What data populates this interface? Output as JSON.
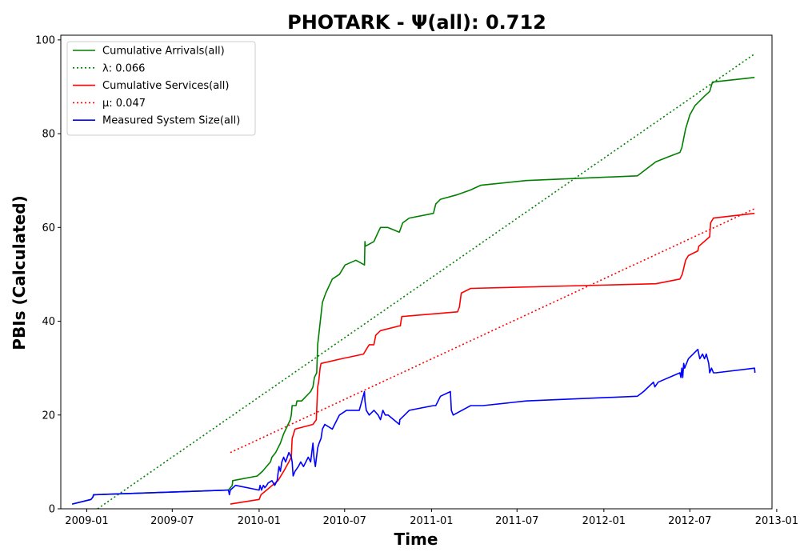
{
  "chart_data": {
    "type": "line",
    "title": "PHOTARK -  Ψ(all): 0.712",
    "xlabel": "Time",
    "ylabel": "PBIs (Calculated)",
    "xlim": [
      "2008-11-07",
      "2012-12-22"
    ],
    "ylim": [
      0,
      101
    ],
    "grid": false,
    "legend_position": "top-left",
    "x_ticks": [
      "2009-01",
      "2009-07",
      "2010-01",
      "2010-07",
      "2011-01",
      "2011-07",
      "2012-01",
      "2012-07",
      "2013-01"
    ],
    "y_ticks": [
      0,
      20,
      40,
      60,
      80,
      100
    ],
    "series": [
      {
        "name": "Cumulative Arrivals(all)",
        "style": "solid",
        "color": "#008000",
        "x": [
          "2008-12-01",
          "2009-01-10",
          "2009-01-14",
          "2009-01-15",
          "2009-10-28",
          "2009-11-05",
          "2009-11-06",
          "2009-12-28",
          "2010-01-08",
          "2010-01-25",
          "2010-01-28",
          "2010-02-05",
          "2010-02-15",
          "2010-02-22",
          "2010-03-08",
          "2010-03-10",
          "2010-03-12",
          "2010-03-20",
          "2010-03-22",
          "2010-04-01",
          "2010-04-20",
          "2010-04-25",
          "2010-04-28",
          "2010-05-03",
          "2010-05-05",
          "2010-05-15",
          "2010-05-22",
          "2010-06-05",
          "2010-06-20",
          "2010-07-02",
          "2010-07-25",
          "2010-08-12",
          "2010-08-13",
          "2010-08-14",
          "2010-09-01",
          "2010-09-10",
          "2010-09-15",
          "2010-09-30",
          "2010-10-25",
          "2010-11-01",
          "2010-11-15",
          "2011-01-05",
          "2011-01-10",
          "2011-01-20",
          "2011-02-25",
          "2011-03-25",
          "2011-04-15",
          "2011-07-20",
          "2012-03-12",
          "2012-03-25",
          "2012-04-20",
          "2012-05-15",
          "2012-06-10",
          "2012-06-14",
          "2012-06-18",
          "2012-06-22",
          "2012-07-01",
          "2012-07-12",
          "2012-08-01",
          "2012-08-12",
          "2012-08-18",
          "2012-11-15"
        ],
        "values": [
          1,
          2,
          2.5,
          3,
          4,
          5,
          6,
          7,
          8,
          10,
          11,
          12,
          14,
          16,
          19,
          20,
          22,
          22,
          23,
          23,
          25,
          26,
          28,
          29,
          35,
          44,
          46,
          49,
          50,
          52,
          53,
          52,
          57,
          56,
          57,
          59,
          60,
          60,
          59,
          61,
          62,
          63,
          65,
          66,
          67,
          68,
          69,
          70,
          71,
          72,
          74,
          75,
          76,
          77,
          79,
          81,
          84,
          86,
          88,
          89,
          91,
          92
        ]
      },
      {
        "name": "λ: 0.066",
        "style": "dotted",
        "color": "#008000",
        "x": [
          "2009-01-24",
          "2012-11-15"
        ],
        "values": [
          0,
          97
        ]
      },
      {
        "name": "Cumulative Services(all)",
        "style": "solid",
        "color": "#ff0000",
        "x": [
          "2009-11-01",
          "2010-01-01",
          "2010-01-05",
          "2010-02-10",
          "2010-02-22",
          "2010-03-05",
          "2010-03-10",
          "2010-03-12",
          "2010-03-18",
          "2010-04-25",
          "2010-05-02",
          "2010-05-05",
          "2010-05-07",
          "2010-05-10",
          "2010-05-12",
          "2010-06-25",
          "2010-08-10",
          "2010-08-16",
          "2010-08-22",
          "2010-09-01",
          "2010-09-05",
          "2010-09-15",
          "2010-10-25",
          "2010-10-27",
          "2010-10-30",
          "2011-02-25",
          "2011-03-01",
          "2011-03-05",
          "2011-03-25",
          "2012-04-20",
          "2012-06-10",
          "2012-06-15",
          "2012-06-22",
          "2012-06-28",
          "2012-07-18",
          "2012-07-20",
          "2012-08-12",
          "2012-08-14",
          "2012-08-20",
          "2012-11-15"
        ],
        "values": [
          1,
          2,
          3,
          6,
          8,
          10,
          11,
          15,
          17,
          18,
          19,
          26,
          27,
          30,
          31,
          32,
          33,
          34,
          35,
          35,
          37,
          38,
          39,
          39,
          41,
          42,
          43,
          46,
          47,
          48,
          49,
          50,
          53,
          54,
          55,
          56,
          58,
          61,
          62,
          63
        ]
      },
      {
        "name": "μ: 0.047",
        "style": "dotted",
        "color": "#ff0000",
        "x": [
          "2009-11-01",
          "2012-11-15"
        ],
        "values": [
          12,
          64
        ]
      },
      {
        "name": "Measured System Size(all)",
        "style": "solid",
        "color": "#0000ff",
        "x": [
          "2008-12-01",
          "2009-01-10",
          "2009-01-14",
          "2009-01-16",
          "2009-10-28",
          "2009-10-30",
          "2009-11-01",
          "2009-11-12",
          "2010-01-01",
          "2010-01-03",
          "2010-01-06",
          "2010-01-10",
          "2010-01-13",
          "2010-01-17",
          "2010-01-20",
          "2010-01-28",
          "2010-02-03",
          "2010-02-08",
          "2010-02-12",
          "2010-02-15",
          "2010-02-18",
          "2010-02-22",
          "2010-02-26",
          "2010-03-05",
          "2010-03-10",
          "2010-03-12",
          "2010-03-14",
          "2010-03-18",
          "2010-03-25",
          "2010-03-30",
          "2010-04-05",
          "2010-04-15",
          "2010-04-20",
          "2010-04-25",
          "2010-04-27",
          "2010-04-30",
          "2010-05-05",
          "2010-05-08",
          "2010-05-12",
          "2010-05-15",
          "2010-05-20",
          "2010-06-05",
          "2010-06-15",
          "2010-06-20",
          "2010-07-05",
          "2010-08-01",
          "2010-08-12",
          "2010-08-13",
          "2010-08-16",
          "2010-08-22",
          "2010-09-01",
          "2010-09-10",
          "2010-09-15",
          "2010-09-20",
          "2010-09-25",
          "2010-10-01",
          "2010-10-25",
          "2010-10-26",
          "2010-11-05",
          "2010-11-15",
          "2011-01-05",
          "2011-01-10",
          "2011-01-20",
          "2011-02-10",
          "2011-02-12",
          "2011-02-16",
          "2011-03-25",
          "2011-04-20",
          "2011-07-20",
          "2012-03-12",
          "2012-03-25",
          "2012-04-15",
          "2012-04-18",
          "2012-04-25",
          "2012-06-10",
          "2012-06-12",
          "2012-06-14",
          "2012-06-16",
          "2012-06-18",
          "2012-06-20",
          "2012-06-28",
          "2012-07-18",
          "2012-07-22",
          "2012-07-28",
          "2012-08-01",
          "2012-08-05",
          "2012-08-10",
          "2012-08-12",
          "2012-08-16",
          "2012-08-20",
          "2012-08-25",
          "2012-11-15",
          "2012-11-16"
        ],
        "values": [
          1,
          2,
          2.5,
          3,
          4,
          3,
          4,
          5,
          4,
          5,
          4,
          5,
          4.5,
          5,
          5.5,
          6,
          5,
          6,
          9,
          8,
          10,
          11,
          10,
          12,
          11,
          10,
          7,
          8,
          9,
          10,
          9,
          11,
          10,
          14,
          11,
          9,
          13,
          14,
          15,
          17,
          18,
          17,
          19,
          20,
          21,
          21,
          25,
          23,
          21,
          20,
          21,
          20,
          19,
          21,
          20,
          20,
          18,
          19,
          20,
          21,
          22,
          22,
          24,
          25,
          21,
          20,
          22,
          22,
          23,
          24,
          25,
          27,
          26,
          27,
          29,
          28,
          30,
          28,
          31,
          30,
          32,
          34,
          32,
          33,
          32,
          33,
          31,
          29,
          30,
          29,
          29,
          30,
          29
        ]
      }
    ]
  }
}
